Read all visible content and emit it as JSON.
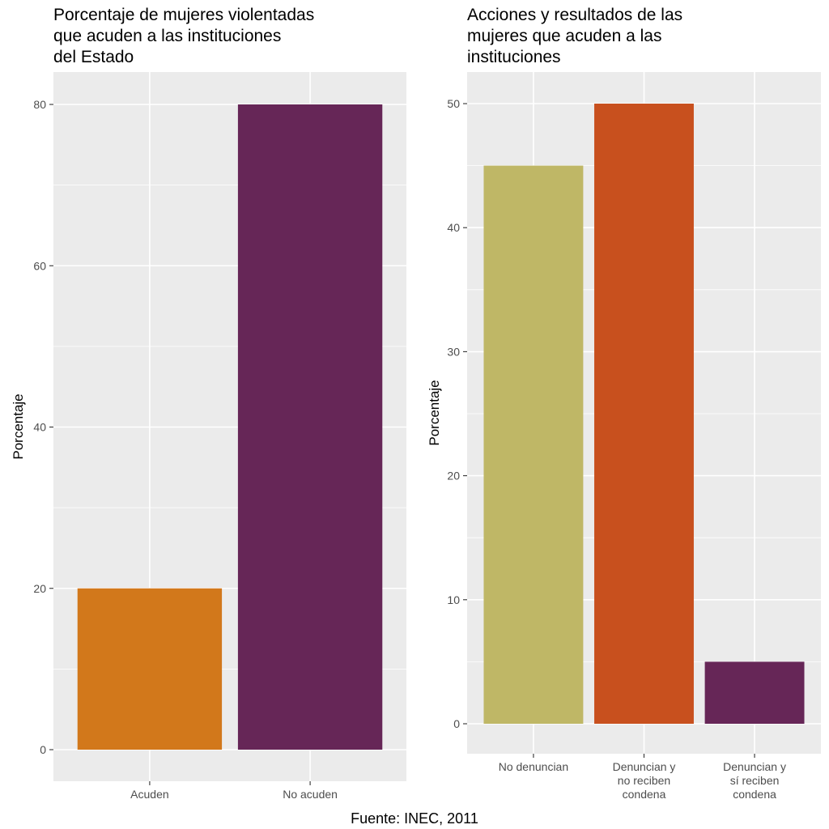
{
  "chart_data": [
    {
      "type": "bar",
      "title": [
        "Porcentaje de mujeres violentadas",
        "que acuden a las instituciones",
        "del Estado"
      ],
      "xlabel": "",
      "ylabel": "Porcentaje",
      "categories": [
        "Acuden",
        "No acuden"
      ],
      "values": [
        20,
        80
      ],
      "colors": [
        "#d2781b",
        "#662657"
      ],
      "ylim": [
        0,
        80
      ],
      "yticks": [
        0,
        20,
        40,
        60,
        80
      ],
      "grid": true
    },
    {
      "type": "bar",
      "title": [
        "Acciones y resultados de las",
        "mujeres que acuden a las",
        "instituciones"
      ],
      "xlabel": "",
      "ylabel": "Porcentaje",
      "categories": [
        "No denuncian",
        "Denuncian y no reciben condena",
        "Denuncian y sí reciben condena"
      ],
      "category_lines": [
        [
          "No denuncian"
        ],
        [
          "Denuncian y",
          "no reciben",
          "condena"
        ],
        [
          "Denuncian y",
          "sí reciben",
          "condena"
        ]
      ],
      "values": [
        45,
        50,
        5
      ],
      "colors": [
        "#bfb766",
        "#c8501e",
        "#662657"
      ],
      "ylim": [
        0,
        50
      ],
      "yticks": [
        0,
        10,
        20,
        30,
        40,
        50
      ],
      "grid": true
    }
  ],
  "caption": "Fuente: INEC, 2011"
}
